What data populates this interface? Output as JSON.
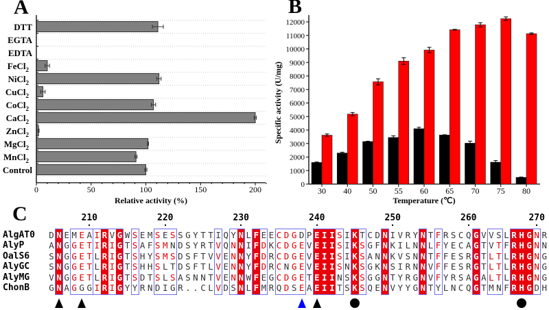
{
  "chart_data": [
    {
      "panel": "A",
      "type": "bar",
      "orientation": "horizontal",
      "categories": [
        "DTT",
        "EGTA",
        "EDTA",
        "FeCl2",
        "NiCl2",
        "CuCl2",
        "CoCl2",
        "CaCl2",
        "ZnCl2",
        "MgCl2",
        "MnCl2",
        "Control"
      ],
      "category_labels": [
        [
          "DTT",
          ""
        ],
        [
          "EGTA",
          ""
        ],
        [
          "EDTA",
          ""
        ],
        [
          "FeCl",
          "2"
        ],
        [
          "NiCl",
          "2"
        ],
        [
          "CuCl",
          "2"
        ],
        [
          "CoCl",
          "2"
        ],
        [
          "CaCl",
          "2"
        ],
        [
          "ZnCl",
          "2"
        ],
        [
          "MgCl",
          "2"
        ],
        [
          "MnCl",
          "2"
        ],
        [
          "Control",
          ""
        ]
      ],
      "values": [
        111,
        0,
        0,
        10,
        112,
        6,
        107,
        200,
        2,
        102,
        91,
        100
      ],
      "errors": [
        5,
        0,
        0,
        2,
        2,
        2,
        2,
        1,
        0.5,
        0.5,
        1,
        1
      ],
      "xlabel": "Relative activity (%)",
      "xlim": [
        0,
        210
      ],
      "xticks": [
        0,
        50,
        100,
        150,
        200
      ],
      "grid": "dotted horizontal",
      "bar_color": "#808080"
    },
    {
      "panel": "B",
      "type": "bar",
      "categories": [
        "30",
        "40",
        "50",
        "55",
        "60",
        "65",
        "70",
        "75",
        "80"
      ],
      "series": [
        {
          "values": [
            1600,
            2300,
            3150,
            3450,
            4100,
            3630,
            3030,
            1620,
            500
          ],
          "errors": [
            30,
            60,
            20,
            120,
            100,
            20,
            150,
            120,
            20
          ],
          "color": "#000000"
        },
        {
          "values": [
            3620,
            5180,
            7570,
            9100,
            9920,
            11420,
            11790,
            12240,
            11130
          ],
          "errors": [
            90,
            120,
            220,
            250,
            200,
            30,
            150,
            130,
            60
          ],
          "color": "#ff0000"
        }
      ],
      "xlabel": "Temperature (℃)",
      "ylabel": "Specific activity (U/mg)",
      "ylim": [
        0,
        12500
      ],
      "yticks": [
        0,
        1000,
        2000,
        3000,
        4000,
        5000,
        6000,
        7000,
        8000,
        9000,
        10000,
        11000,
        12000
      ]
    }
  ],
  "panels": {
    "a": "A",
    "b": "B",
    "c": "C"
  },
  "alignment": {
    "numbers": [
      {
        "label": "210",
        "col": 6
      },
      {
        "label": "220",
        "col": 16
      },
      {
        "label": "230",
        "col": 26
      },
      {
        "label": "240",
        "col": 36
      },
      {
        "label": "250",
        "col": 46
      },
      {
        "label": "260",
        "col": 56
      },
      {
        "label": "270",
        "col": 65
      }
    ],
    "sequences": [
      {
        "name": "AlgAT0",
        "seq": "DNEMEAIRVGWSEMSESSGYTTIQYNLFEECDGDPEIISIKTCDNIVRYNTFRSCQGVVSLRHGNR"
      },
      {
        "name": "AlyP",
        "seq": "ANGGETIRIGTSAFSMNDSYRTVQNNIFDKCDGEVEIISIKSGFNKILNNLFYECAGTVTFRHGNN"
      },
      {
        "name": "OalS6",
        "seq": "SNGGETLRIGTSHYSMSDSFTVVENNYFDRCDGEVEIISIKSANNKVSNNTFFESRGTLTLRHGNG"
      },
      {
        "name": "AlyGC",
        "seq": "SNGGETLRIGTSHHSLTDSFTLVENNYFDRCNGEVEIISNKSGKNSIRNNVFFESRGTLTLRHGNG"
      },
      {
        "name": "AlyMG",
        "seq": "VNGGETLRIGTSDTSLSASNNTVENNWFEGCDGETEIINSKSGGNTYRGNVFYRSAGALTLRHGNG"
      },
      {
        "name": "ChonB",
        "seq": "GNAGGGIRIGYYRNDIGR..CLVDSNLFMRQDSEAEIITSKSQENVYYGNTYLNCQGTMNFRHGDH"
      }
    ],
    "conserved_columns": [
      2,
      8,
      10,
      26,
      28,
      36,
      37,
      38,
      41,
      45,
      50,
      57,
      62,
      63,
      64
    ],
    "similar_boxes": [
      [
        2,
        2
      ],
      [
        4,
        6
      ],
      [
        7,
        10
      ],
      [
        12,
        12
      ],
      [
        15,
        17
      ],
      [
        23,
        23
      ],
      [
        25,
        26
      ],
      [
        28,
        29
      ],
      [
        31,
        34
      ],
      [
        36,
        39
      ],
      [
        41,
        42
      ],
      [
        45,
        45
      ],
      [
        50,
        50
      ],
      [
        52,
        52
      ],
      [
        57,
        57
      ],
      [
        59,
        60
      ],
      [
        62,
        65
      ]
    ],
    "markers": [
      {
        "col": 2,
        "shape": "triangle",
        "color": "#000000"
      },
      {
        "col": 5,
        "shape": "triangle",
        "color": "#000000"
      },
      {
        "col": 34,
        "shape": "triangle",
        "color": "#0000ff"
      },
      {
        "col": 36,
        "shape": "triangle",
        "color": "#000000"
      },
      {
        "col": 41,
        "shape": "circle",
        "color": "#000000"
      },
      {
        "col": 63,
        "shape": "circle",
        "color": "#000000"
      }
    ],
    "colors": {
      "conserved_bg": "#e8000b",
      "similar_text": "#e00000",
      "box_border": "#6f6fe8"
    }
  }
}
